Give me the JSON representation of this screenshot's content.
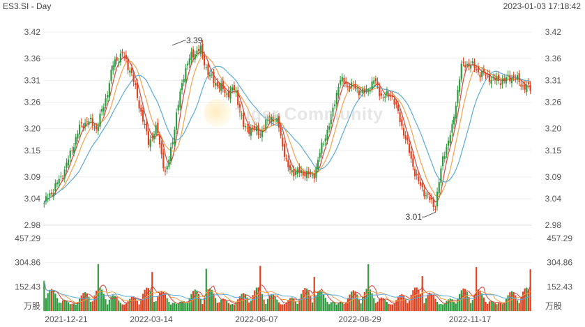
{
  "header": {
    "title": "ES3.SI - Day",
    "timestamp": "2023-01-03 17:18:42"
  },
  "watermark": "Tiger Community",
  "colors": {
    "up": "#2e9b3e",
    "down": "#e0411e",
    "ma5": "#d0443a",
    "ma10": "#f5a04a",
    "ma20": "#5aa9d6"
  },
  "chart_data": {
    "type": "candlestick",
    "price_axis": {
      "ticks": [
        "3.42",
        "3.36",
        "3.31",
        "3.26",
        "3.20",
        "3.15",
        "3.09",
        "3.04",
        "2.98"
      ],
      "ylim": [
        2.98,
        3.42
      ]
    },
    "volume_axis": {
      "ticks": [
        "457.29",
        "304.86",
        "152.43"
      ],
      "unit": "万股",
      "ylim": [
        0,
        457.29
      ]
    },
    "x_ticks": [
      "2021-12-21",
      "2022-03-14",
      "2022-06-07",
      "2022-08-29",
      "2022-11-17"
    ],
    "annotations": [
      {
        "label": "3.39",
        "type": "high",
        "price": 3.39
      },
      {
        "label": "3.01",
        "type": "low",
        "price": 3.01
      }
    ],
    "close_anchors": [
      3.03,
      3.06,
      3.09,
      3.14,
      3.2,
      3.22,
      3.2,
      3.26,
      3.35,
      3.37,
      3.33,
      3.25,
      3.17,
      3.2,
      3.09,
      3.2,
      3.32,
      3.37,
      3.38,
      3.32,
      3.3,
      3.28,
      3.29,
      3.2,
      3.2,
      3.19,
      3.23,
      3.21,
      3.11,
      3.1,
      3.1,
      3.09,
      3.16,
      3.22,
      3.31,
      3.3,
      3.29,
      3.28,
      3.31,
      3.27,
      3.28,
      3.22,
      3.15,
      3.08,
      3.05,
      3.02,
      3.14,
      3.2,
      3.34,
      3.35,
      3.33,
      3.32,
      3.31,
      3.31,
      3.32,
      3.3,
      3.29
    ],
    "note": "volume in 万股 read approximately from bars"
  },
  "legend_units": {
    "left": "万股",
    "right": "万股"
  }
}
